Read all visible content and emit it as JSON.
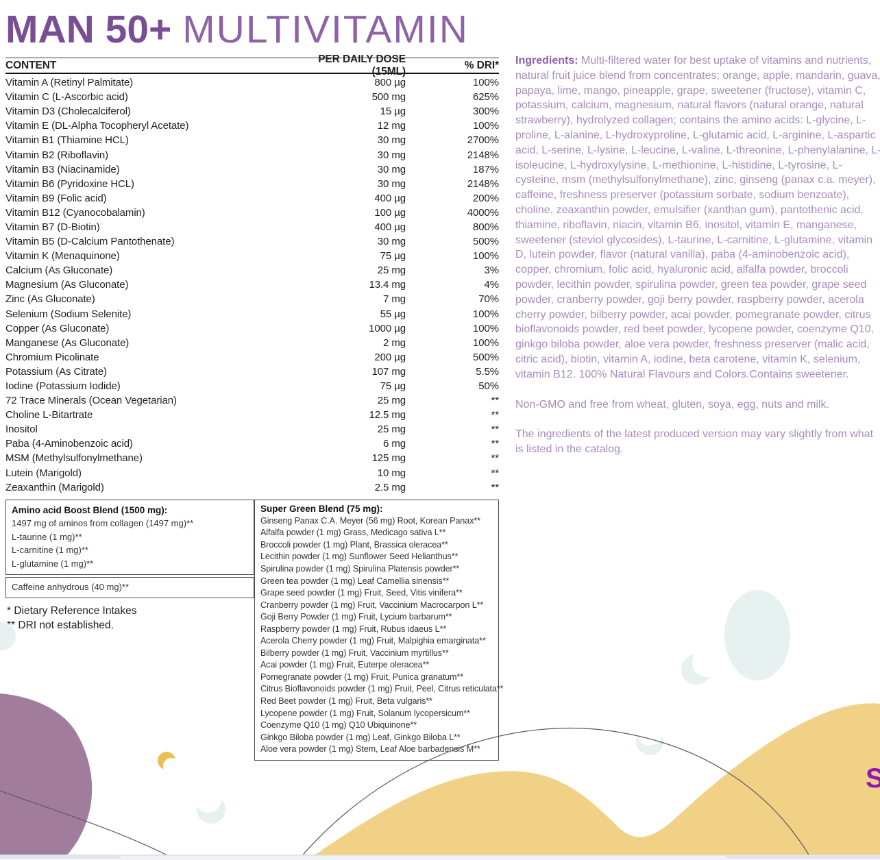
{
  "page_title": {
    "bold": "MAN 50+",
    "light": "MULTIVITAMIN"
  },
  "content_table": {
    "headers": {
      "content": "CONTENT",
      "dose": "PER DAILY DOSE (15ML)",
      "dri": "% DRI*"
    },
    "rows": [
      {
        "name": "Vitamin A (Retinyl Palmitate)",
        "dose": "800 µg",
        "dri": "100%"
      },
      {
        "name": "Vitamin C (L-Ascorbic acid)",
        "dose": "500 mg",
        "dri": "625%"
      },
      {
        "name": "Vitamin D3 (Cholecalciferol)",
        "dose": "15 µg",
        "dri": "300%"
      },
      {
        "name": "Vitamin E (DL-Alpha Tocopheryl Acetate)",
        "dose": "12 mg",
        "dri": "100%"
      },
      {
        "name": "Vitamin B1 (Thiamine HCL)",
        "dose": "30 mg",
        "dri": "2700%"
      },
      {
        "name": "Vitamin B2 (Riboflavin)",
        "dose": "30 mg",
        "dri": "2148%"
      },
      {
        "name": "Vitamin B3 (Niacinamide)",
        "dose": "30 mg",
        "dri": "187%"
      },
      {
        "name": "Vitamin B6 (Pyridoxine HCL)",
        "dose": "30 mg",
        "dri": "2148%"
      },
      {
        "name": "Vitamin B9 (Folic acid)",
        "dose": "400 µg",
        "dri": "200%"
      },
      {
        "name": "Vitamin B12 (Cyanocobalamin)",
        "dose": "100 µg",
        "dri": "4000%"
      },
      {
        "name": "Vitamin B7 (D-Biotin)",
        "dose": "400 µg",
        "dri": "800%"
      },
      {
        "name": "Vitamin B5 (D-Calcium Pantothenate)",
        "dose": "30 mg",
        "dri": "500%"
      },
      {
        "name": "Vitamin K (Menaquinone)",
        "dose": "75  µg",
        "dri": "100%"
      },
      {
        "name": "Calcium (As Gluconate)",
        "dose": "25 mg",
        "dri": "3%"
      },
      {
        "name": "Magnesium (As Gluconate)",
        "dose": "13.4 mg",
        "dri": "4%"
      },
      {
        "name": "Zinc (As Gluconate)",
        "dose": "7 mg",
        "dri": "70%"
      },
      {
        "name": "Selenium (Sodium Selenite)",
        "dose": "55 µg",
        "dri": "100%"
      },
      {
        "name": "Copper (As Gluconate)",
        "dose": "1000 µg",
        "dri": "100%"
      },
      {
        "name": "Manganese (As Gluconate)",
        "dose": "2 mg",
        "dri": "100%"
      },
      {
        "name": "Chromium Picolinate",
        "dose": "200 µg",
        "dri": "500%"
      },
      {
        "name": "Potassium (As Citrate)",
        "dose": "107 mg",
        "dri": "5.5%"
      },
      {
        "name": "Iodine (Potassium Iodide)",
        "dose": "75 µg",
        "dri": "50%"
      },
      {
        "name": "72 Trace Minerals (Ocean Vegetarian)",
        "dose": "25 mg",
        "dri": "**"
      },
      {
        "name": "Choline L-Bitartrate",
        "dose": "12.5 mg",
        "dri": "**"
      },
      {
        "name": "Inositol",
        "dose": "25 mg",
        "dri": "**"
      },
      {
        "name": "Paba (4-Aminobenzoic acid)",
        "dose": "6 mg",
        "dri": "**"
      },
      {
        "name": "MSM (Methylsulfonylmethane)",
        "dose": "125 mg",
        "dri": "**"
      },
      {
        "name": "Lutein (Marigold)",
        "dose": "10 mg",
        "dri": "**"
      },
      {
        "name": "Zeaxanthin (Marigold)",
        "dose": "2.5 mg",
        "dri": "**"
      }
    ]
  },
  "amino_box": {
    "title": "Amino acid Boost Blend (1500 mg):",
    "items": [
      "1497 mg of aminos from collagen (1497 mg)**",
      "L-taurine (1 mg)**",
      "L-carnitine (1 mg)**",
      "L-glutamine (1 mg)**"
    ],
    "caffeine": "Caffeine anhydrous (40 mg)**"
  },
  "green_box": {
    "title": "Super Green Blend (75 mg):",
    "items": [
      "Ginseng Panax C.A. Meyer (56 mg) Root, Korean Panax**",
      "Alfalfa powder (1 mg) Grass, Medicago sativa L**",
      "Broccoli powder (1 mg) Plant, Brassica oleracea**",
      "Lecithin powder (1 mg) Sunflower Seed Helianthus**",
      "Spirulina powder (1 mg) Spirulina Platensis powder**",
      "Green tea powder (1 mg) Leaf Camellia sinensis**",
      "Grape seed powder (1 mg) Fruit, Seed, Vitis vinifera**",
      "Cranberry powder (1 mg) Fruit, Vaccinium Macrocarpon L**",
      "Goji Berry Powder (1 mg) Fruit, Lycium barbarum**",
      "Raspberry powder (1 mg) Fruit, Rubus idaeus L**",
      "Acerola Cherry powder (1 mg) Fruit, Malpighia emarginata**",
      "Bilberry powder (1 mg) Fruit, Vaccinium myrtillus**",
      "Acai powder (1 mg) Fruit, Euterpe oleracea**",
      "Pomegranate powder (1 mg) Fruit, Punica granatum**",
      "Citrus Bioflavonoids powder (1 mg) Fruit, Peel, Citrus reticulata**",
      "Red Beet powder (1 mg) Fruit, Beta vulgaris**",
      "Lycopene powder (1 mg) Fruit, Solanum lycopersicum**",
      "Coenzyme Q10 (1 mg) Q10 Ubiquinone**",
      "Ginkgo Biloba powder (1 mg) Leaf, Ginkgo Biloba L**",
      "Aloe vera powder (1 mg) Stem, Leaf Aloe barbadensis M**"
    ]
  },
  "footnotes": [
    "* Dietary Reference Intakes",
    "** DRI not established."
  ],
  "ingredients": {
    "label": "Ingredients:",
    "text": " Multi-filtered water for best uptake of vitamins and nutrients, natural fruit juice blend from concentrates; orange, apple, mandarin, guava, papaya, lime, mango, pineapple, grape, sweetener (fructose), vitamin C, potassium, calcium, magnesium, natural flavors (natural orange, natural strawberry), hydrolyzed collagen; contains the amino acids: L-glycine, L-proline, L-alanine, L-hydroxyproline, L-glutamic acid, L-arginine, L-aspartic acid, L-serine, L-lysine, L-leucine, L-valine, L-threonine, L-phenylalanine, L-isoleucine, L-hydroxylysine, L-methionine, L-histidine, L-tyrosine, L-cysteine, msm (methylsulfonylmethane), zinc, ginseng (panax c.a. meyer), caffeine, freshness preserver (potassium sorbate, sodium benzoate), choline, zeaxanthin powder, emulsifier (xanthan gum), pantothenic acid, thiamine, riboflavin, niacin, vitamin B6, inositol, vitamin E, manganese, sweetener (steviol glycosides), L-taurine, L-carnitine, L-glutamine, vitamin D, lutein powder, flavor (natural vanilla), paba (4-aminobenzoic acid), copper, chromium, folic acid, hyaluronic acid, alfalfa powder, broccoli powder, lecithin powder, spirulina powder, green tea powder, grape seed powder, cranberry powder, goji berry powder, raspberry powder, acerola cherry powder, bilberry powder, acai powder, pomegranate powder, citrus bioflavonoids powder, red beet powder, lycopene powder, coenzyme Q10, ginkgo biloba powder, aloe vera powder, freshness preserver (malic acid, citric acid), biotin, vitamin A, iodine, beta carotene, vitamin K, selenium, vitamin B12. 100% Natural Flavours and Colors.Contains sweetener.",
    "non_gmo": "Non-GMO and free from wheat, gluten, soya, egg, nuts and milk.",
    "disclaimer": "The ingredients of the latest produced version may vary slightly from what is listed in the catalog."
  },
  "decor": {
    "partial_letter": "S",
    "colors": {
      "title_purple": "#7a4e94",
      "title_light_purple": "#8d63a5",
      "ingredients_purple": "#a78bbf",
      "ingredients_label_purple": "#8d5fae",
      "blob_mauve": "#a27c9c",
      "wave_yellow": "#f0d185",
      "crescent_yellow": "#eabf55",
      "pale_teal": "#e7f1f0",
      "partial_letter_purple": "#8d18b6"
    }
  }
}
